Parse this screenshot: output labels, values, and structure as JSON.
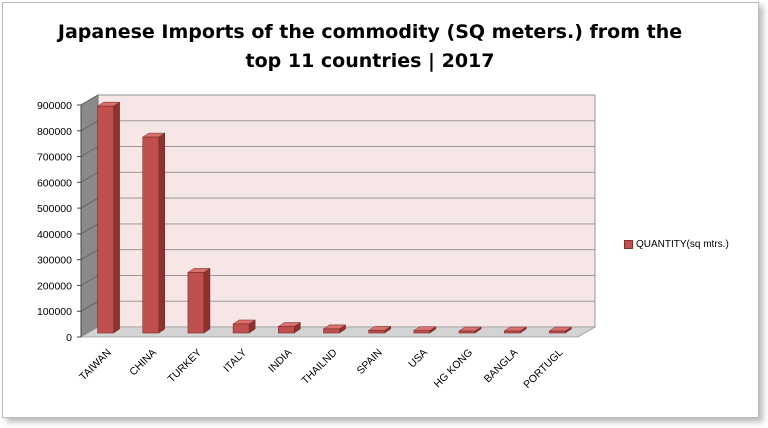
{
  "chart_data": {
    "type": "bar",
    "title_line1": "Japanese Imports of the commodity (SQ meters.) from the",
    "title_line2": "top 11 countries | 2017",
    "categories": [
      "TAIWAN",
      "CHINA",
      "TURKEY",
      "ITALY",
      "INDIA",
      "THAILND",
      "SPAIN",
      "USA",
      "HG KONG",
      "BANGLA",
      "PORTUGL"
    ],
    "series": [
      {
        "name": "QUANTITY(sq  mtrs.)",
        "values": [
          880000,
          760000,
          235000,
          35000,
          25000,
          16000,
          10000,
          9000,
          6000,
          5000,
          4000
        ]
      }
    ],
    "ylim": [
      0,
      900000
    ],
    "yticks": [
      "0",
      "100000",
      "200000",
      "300000",
      "400000",
      "500000",
      "600000",
      "700000",
      "800000",
      "900000"
    ],
    "grid": true,
    "legend_position": "right",
    "colors": {
      "bar_front": "#c0504d",
      "bar_side": "#8e3230",
      "bar_top": "#d9716e",
      "plot_back_wall": "#f7e6e6",
      "side_wall": "#8a8a8a",
      "floor": "#d3d3d3",
      "gridline": "#8c8c8c"
    }
  }
}
